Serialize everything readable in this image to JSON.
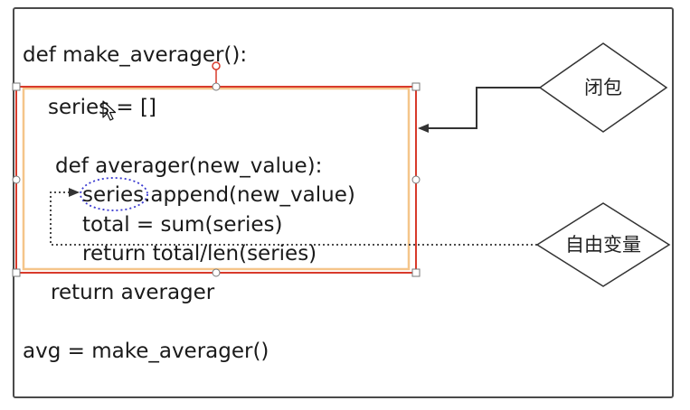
{
  "code": {
    "line1": "def make_averager():",
    "line2": "series = []",
    "line3": "def averager(new_value):",
    "line4": "series.append(new_value)",
    "line5": "total = sum(series)",
    "line6": "return total/len(series)",
    "line7": "return averager",
    "line8": "avg = make_averager()"
  },
  "labels": {
    "closure": "闭包",
    "free_variable": "自由变量"
  },
  "colors": {
    "selection_red": "#d83a2b",
    "closure_box_orange": "#f5c58a",
    "dotted_circle_blue": "#3a3ad0",
    "connector_dark": "#333333"
  }
}
